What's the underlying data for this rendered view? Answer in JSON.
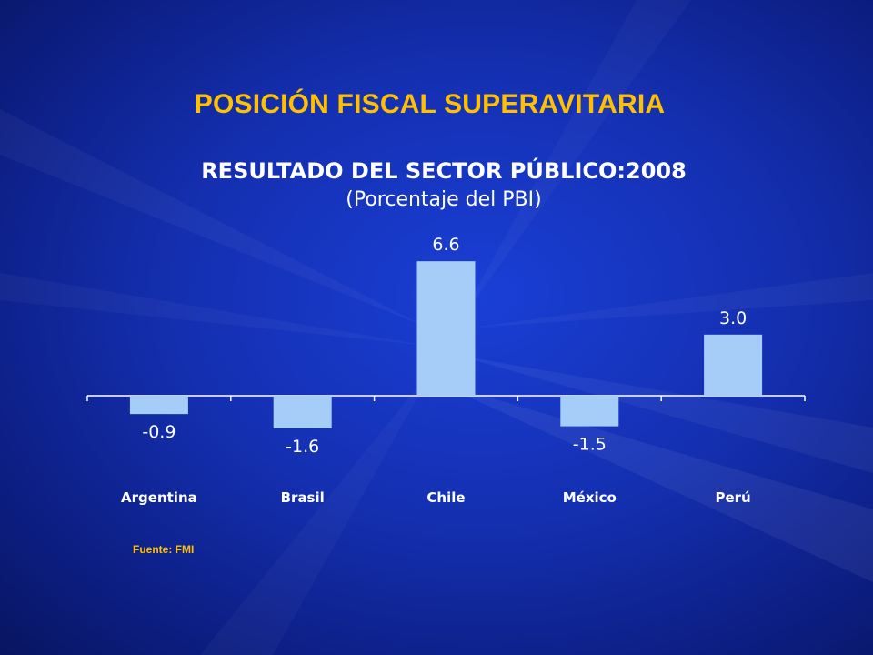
{
  "slide": {
    "heading": "POSICIÓN  FISCAL SUPERAVITARIA",
    "source": "Fuente: FMI",
    "colors": {
      "background": "#142fb0",
      "heading": "#ffc000",
      "bar": "#a6cdf7",
      "text": "#ffffff"
    }
  },
  "chart_data": {
    "type": "bar",
    "title": "RESULTADO DEL SECTOR PÚBLICO:2008",
    "subtitle": "(Porcentaje del PBI)",
    "categories": [
      "Argentina",
      "Brasil",
      "Chile",
      "México",
      "Perú"
    ],
    "values": [
      -0.9,
      -1.6,
      6.6,
      -1.5,
      3.0
    ],
    "data_labels": [
      "-0.9",
      "-1.6",
      "6.6",
      "-1.5",
      "3.0"
    ],
    "xlabel": "",
    "ylabel": "",
    "grid": false,
    "legend": "none"
  }
}
